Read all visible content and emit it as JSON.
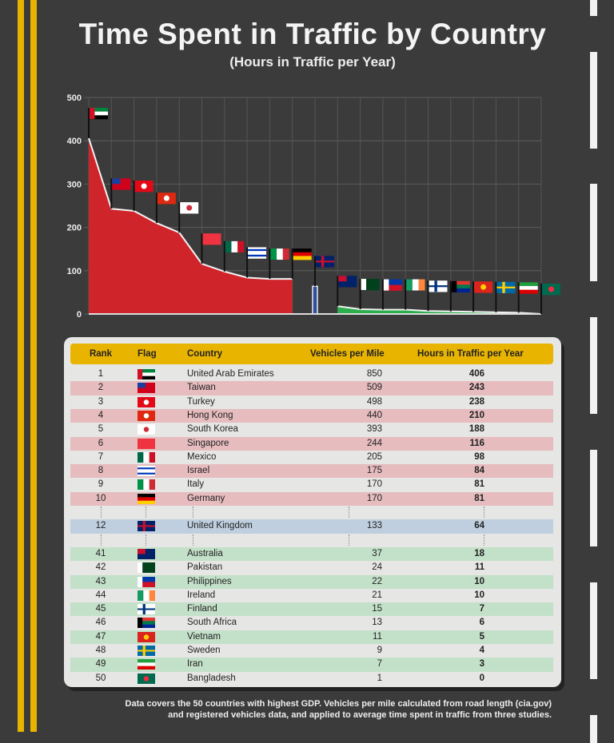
{
  "title": "Time Spent in Traffic by Country",
  "subtitle": "(Hours in Traffic per Year)",
  "footnote_line1": "Data covers the 50 countries with highest GDP. Vehicles per mile calculated from road length (cia.gov)",
  "footnote_line2": "and registered vehicles data, and applied to average time spent in traffic from three studies.",
  "table": {
    "headers": {
      "rank": "Rank",
      "flag": "Flag",
      "country": "Country",
      "vehicles": "Vehicles per Mile",
      "hours": "Hours in Traffic per Year"
    }
  },
  "colors": {
    "top": "#d0242b",
    "mid": "#2d4f9e",
    "bottom": "#2cae4c",
    "top_row": "#e6bcbf",
    "mid_row": "#bfcfdf",
    "bottom_row": "#c3e0c9",
    "header": "#e8b400"
  },
  "chart_data": {
    "type": "area",
    "title": "Time Spent in Traffic by Country",
    "ylabel": "Hours in Traffic per Year",
    "ylim": [
      0,
      500
    ],
    "yticks": [
      "0",
      "100",
      "200",
      "300",
      "400",
      "500"
    ],
    "grid": true,
    "rows": [
      {
        "rank": "1",
        "country": "United Arab Emirates",
        "vehicles": "850",
        "hours": 406,
        "group": "top",
        "flag": {
          "dir": "h",
          "bands": [
            "#00843d",
            "#ffffff",
            "#000000"
          ],
          "hoist": "#ce1126"
        }
      },
      {
        "rank": "2",
        "country": "Taiwan",
        "vehicles": "509",
        "hours": 243,
        "group": "top",
        "flag": {
          "dir": "h",
          "bands": [
            "#d0021b"
          ],
          "canton": "#1a3f9e"
        }
      },
      {
        "rank": "3",
        "country": "Turkey",
        "vehicles": "498",
        "hours": 238,
        "group": "top",
        "flag": {
          "dir": "h",
          "bands": [
            "#e30a17"
          ],
          "emblem": "#ffffff"
        }
      },
      {
        "rank": "4",
        "country": "Hong Kong",
        "vehicles": "440",
        "hours": 210,
        "group": "top",
        "flag": {
          "dir": "h",
          "bands": [
            "#de2910"
          ],
          "emblem": "#ffffff"
        }
      },
      {
        "rank": "5",
        "country": "South Korea",
        "vehicles": "393",
        "hours": 188,
        "group": "top",
        "flag": {
          "dir": "h",
          "bands": [
            "#ffffff"
          ],
          "emblem": "#cd2e3a"
        }
      },
      {
        "rank": "6",
        "country": "Singapore",
        "vehicles": "244",
        "hours": 116,
        "group": "top",
        "flag": {
          "dir": "h",
          "bands": [
            "#ef3340",
            "#ef3340"
          ]
        }
      },
      {
        "rank": "7",
        "country": "Mexico",
        "vehicles": "205",
        "hours": 98,
        "group": "top",
        "flag": {
          "dir": "v",
          "bands": [
            "#006847",
            "#ffffff",
            "#ce1126"
          ]
        }
      },
      {
        "rank": "8",
        "country": "Israel",
        "vehicles": "175",
        "hours": 84,
        "group": "top",
        "flag": {
          "dir": "h",
          "bands": [
            "#ffffff",
            "#0038b8",
            "#ffffff",
            "#ffffff",
            "#0038b8",
            "#ffffff"
          ]
        }
      },
      {
        "rank": "9",
        "country": "Italy",
        "vehicles": "170",
        "hours": 81,
        "group": "top",
        "flag": {
          "dir": "v",
          "bands": [
            "#009246",
            "#ffffff",
            "#ce2b37"
          ]
        }
      },
      {
        "rank": "10",
        "country": "Germany",
        "vehicles": "170",
        "hours": 81,
        "group": "top",
        "flag": {
          "dir": "h",
          "bands": [
            "#000000",
            "#dd0000",
            "#ffce00"
          ]
        }
      },
      {
        "rank": "12",
        "country": "United Kingdom",
        "vehicles": "133",
        "hours": 64,
        "group": "mid",
        "flag": {
          "dir": "h",
          "bands": [
            "#012169"
          ],
          "cross": "#c8102e"
        }
      },
      {
        "rank": "41",
        "country": "Australia",
        "vehicles": "37",
        "hours": 18,
        "group": "bottom",
        "flag": {
          "dir": "h",
          "bands": [
            "#012169"
          ],
          "canton": "#c8102e"
        }
      },
      {
        "rank": "42",
        "country": "Pakistan",
        "vehicles": "24",
        "hours": 11,
        "group": "bottom",
        "flag": {
          "dir": "h",
          "bands": [
            "#01411c"
          ],
          "hoist": "#ffffff"
        }
      },
      {
        "rank": "43",
        "country": "Philippines",
        "vehicles": "22",
        "hours": 10,
        "group": "bottom",
        "flag": {
          "dir": "h",
          "bands": [
            "#0038a8",
            "#ce1126"
          ],
          "hoist": "#ffffff"
        }
      },
      {
        "rank": "44",
        "country": "Ireland",
        "vehicles": "21",
        "hours": 10,
        "group": "bottom",
        "flag": {
          "dir": "v",
          "bands": [
            "#169b62",
            "#ffffff",
            "#ff883e"
          ]
        }
      },
      {
        "rank": "45",
        "country": "Finland",
        "vehicles": "15",
        "hours": 7,
        "group": "bottom",
        "flag": {
          "dir": "h",
          "bands": [
            "#ffffff"
          ],
          "cross": "#003580"
        }
      },
      {
        "rank": "46",
        "country": "South Africa",
        "vehicles": "13",
        "hours": 6,
        "group": "bottom",
        "flag": {
          "dir": "h",
          "bands": [
            "#de3831",
            "#007a4d",
            "#002395"
          ],
          "hoist": "#000000"
        }
      },
      {
        "rank": "47",
        "country": "Vietnam",
        "vehicles": "11",
        "hours": 5,
        "group": "bottom",
        "flag": {
          "dir": "h",
          "bands": [
            "#da251d"
          ],
          "emblem": "#ffcd00"
        }
      },
      {
        "rank": "48",
        "country": "Sweden",
        "vehicles": "9",
        "hours": 4,
        "group": "bottom",
        "flag": {
          "dir": "h",
          "bands": [
            "#006aa7"
          ],
          "cross": "#fecc00"
        }
      },
      {
        "rank": "49",
        "country": "Iran",
        "vehicles": "7",
        "hours": 3,
        "group": "bottom",
        "flag": {
          "dir": "h",
          "bands": [
            "#239f40",
            "#ffffff",
            "#da0000"
          ]
        }
      },
      {
        "rank": "50",
        "country": "Bangladesh",
        "vehicles": "1",
        "hours": 0,
        "group": "bottom",
        "flag": {
          "dir": "h",
          "bands": [
            "#006a4e"
          ],
          "emblem": "#f42a41"
        }
      }
    ]
  }
}
